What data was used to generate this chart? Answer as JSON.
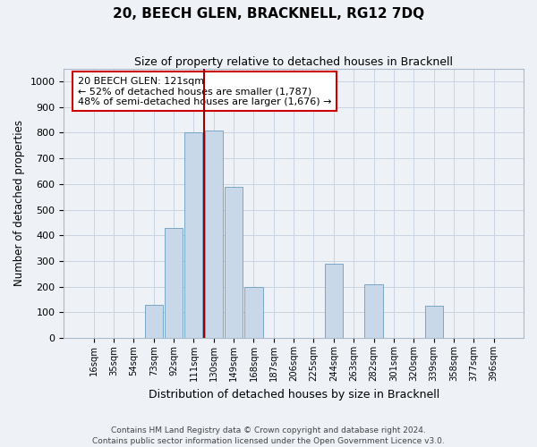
{
  "title": "20, BEECH GLEN, BRACKNELL, RG12 7DQ",
  "subtitle": "Size of property relative to detached houses in Bracknell",
  "xlabel": "Distribution of detached houses by size in Bracknell",
  "ylabel": "Number of detached properties",
  "footer": "Contains HM Land Registry data © Crown copyright and database right 2024.\nContains public sector information licensed under the Open Government Licence v3.0.",
  "bar_labels": [
    "16sqm",
    "35sqm",
    "54sqm",
    "73sqm",
    "92sqm",
    "111sqm",
    "130sqm",
    "149sqm",
    "168sqm",
    "187sqm",
    "206sqm",
    "225sqm",
    "244sqm",
    "263sqm",
    "282sqm",
    "301sqm",
    "320sqm",
    "339sqm",
    "358sqm",
    "377sqm",
    "396sqm"
  ],
  "bar_values": [
    0,
    0,
    0,
    130,
    430,
    800,
    810,
    590,
    200,
    0,
    0,
    0,
    290,
    0,
    210,
    0,
    0,
    125,
    0,
    0,
    0
  ],
  "bar_color": "#c8d8e8",
  "bar_edge_color": "#6a9cbf",
  "vline_x": 6.0,
  "vline_color": "#990000",
  "annotation_text": "20 BEECH GLEN: 121sqm\n← 52% of detached houses are smaller (1,787)\n48% of semi-detached houses are larger (1,676) →",
  "annotation_box_color": "#ffffff",
  "annotation_box_edge": "#cc0000",
  "ylim": [
    0,
    1050
  ],
  "yticks": [
    0,
    100,
    200,
    300,
    400,
    500,
    600,
    700,
    800,
    900,
    1000
  ],
  "background_color": "#eef2f7",
  "grid_color": "#c8d4e0"
}
